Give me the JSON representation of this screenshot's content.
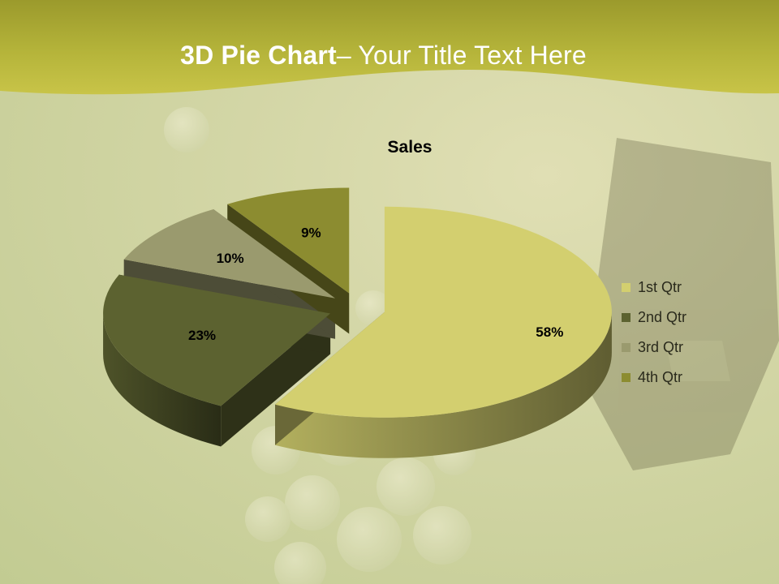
{
  "slide": {
    "title_bold": "3D Pie Chart",
    "title_rest": "– Your Title Text Here"
  },
  "chart_data": {
    "type": "pie",
    "title": "Sales",
    "categories": [
      "1st Qtr",
      "2nd Qtr",
      "3rd Qtr",
      "4th Qtr"
    ],
    "values": [
      58,
      23,
      10,
      9
    ],
    "labels": [
      "58%",
      "23%",
      "10%",
      "9%"
    ],
    "colors": [
      "#d3cf6f",
      "#5c6230",
      "#9a9a6e",
      "#8c8c30"
    ],
    "legend": "right",
    "exploded": true,
    "three_d": true
  },
  "colors": {
    "header_band": "#c0bd3c",
    "title_text": "#ffffff"
  }
}
